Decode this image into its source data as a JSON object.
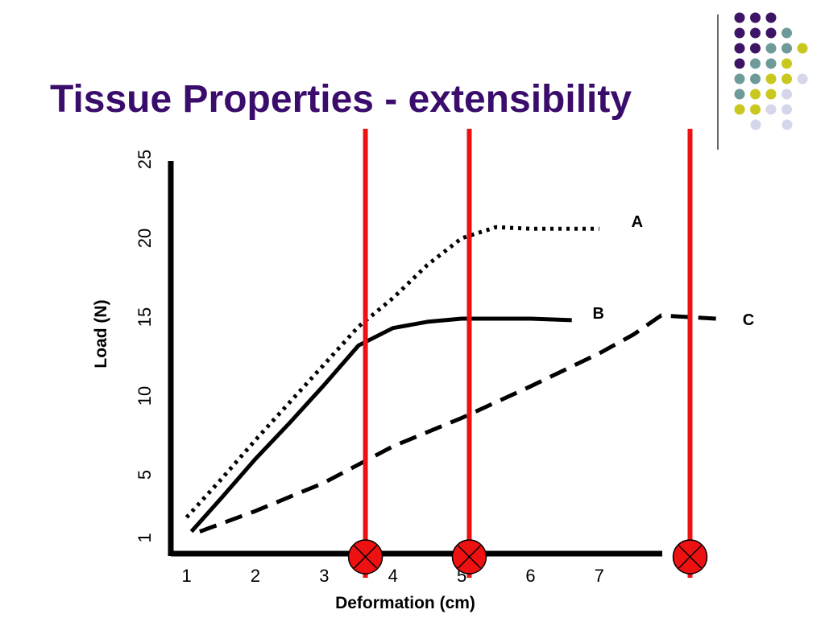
{
  "chart_data": {
    "type": "line",
    "title": "Tissue Properties - extensibility",
    "x_label": "Deformation (cm)",
    "y_label": "Load (N)",
    "xlim": [
      0.77,
      8.9
    ],
    "xticks": [
      1,
      2,
      3,
      4,
      5,
      6,
      7
    ],
    "ylim": [
      0,
      25
    ],
    "yticks": [
      1,
      5,
      10,
      15,
      20,
      25
    ],
    "vlines": [
      3.6,
      5.11,
      8.32
    ],
    "vline_color": "#ee1111",
    "series": [
      {
        "name": "A",
        "color": "#000000",
        "dash": "dotted",
        "x": [
          1,
          1.5,
          2,
          2.5,
          3,
          3.5,
          4,
          4.5,
          5,
          5.5,
          6,
          6.5,
          7
        ],
        "values": [
          2.3,
          4.7,
          7.2,
          9.6,
          12.0,
          14.4,
          16.2,
          18.3,
          20.0,
          20.7,
          20.6,
          20.6,
          20.6
        ]
      },
      {
        "name": "B",
        "color": "#000000",
        "dash": "solid",
        "x": [
          1.07,
          1.5,
          2,
          2.5,
          3,
          3.5,
          4,
          4.5,
          5,
          5.5,
          6,
          6.6
        ],
        "values": [
          1.4,
          3.5,
          6.0,
          8.3,
          10.7,
          13.2,
          14.3,
          14.7,
          14.9,
          14.9,
          14.9,
          14.8
        ]
      },
      {
        "name": "C",
        "color": "#000000",
        "dash": "dashed",
        "x": [
          1.19,
          2,
          3,
          4,
          5,
          6,
          7,
          7.5,
          7.9,
          8.7
        ],
        "values": [
          1.4,
          2.7,
          4.5,
          6.8,
          8.6,
          10.6,
          12.7,
          13.9,
          15.1,
          14.9
        ]
      }
    ]
  }
}
